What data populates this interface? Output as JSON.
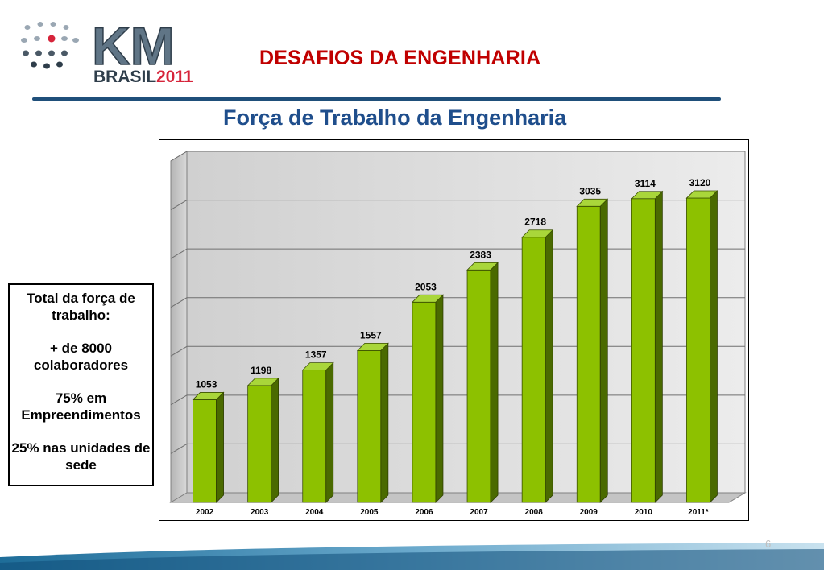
{
  "header": {
    "logo_text_main": "KM",
    "logo_text_sub_a": "BRASIL",
    "logo_text_sub_b": "2011",
    "title": "DESAFIOS DA ENGENHARIA",
    "subtitle": "Força de Trabalho da Engenharia"
  },
  "info_box": {
    "line1": "Total da força de trabalho:",
    "line2": "+ de 8000 colaboradores",
    "line3": "75% em Empreendimentos",
    "line4": "25% nas unidades de sede"
  },
  "chart_data": {
    "type": "bar",
    "categories": [
      "2002",
      "2003",
      "2004",
      "2005",
      "2006",
      "2007",
      "2008",
      "2009",
      "2010",
      "2011*"
    ],
    "values": [
      1053,
      1198,
      1357,
      1557,
      2053,
      2383,
      2718,
      3035,
      3114,
      3120
    ],
    "ylim": [
      0,
      3500
    ],
    "grid": true,
    "bar_color": "#8dc100",
    "bar_shadow_color": "#4a6a00"
  },
  "footer": {
    "page_number": "6"
  },
  "colors": {
    "title_red": "#c00000",
    "subtitle_blue": "#1f4e8c",
    "rule": "#1f4f7a"
  }
}
